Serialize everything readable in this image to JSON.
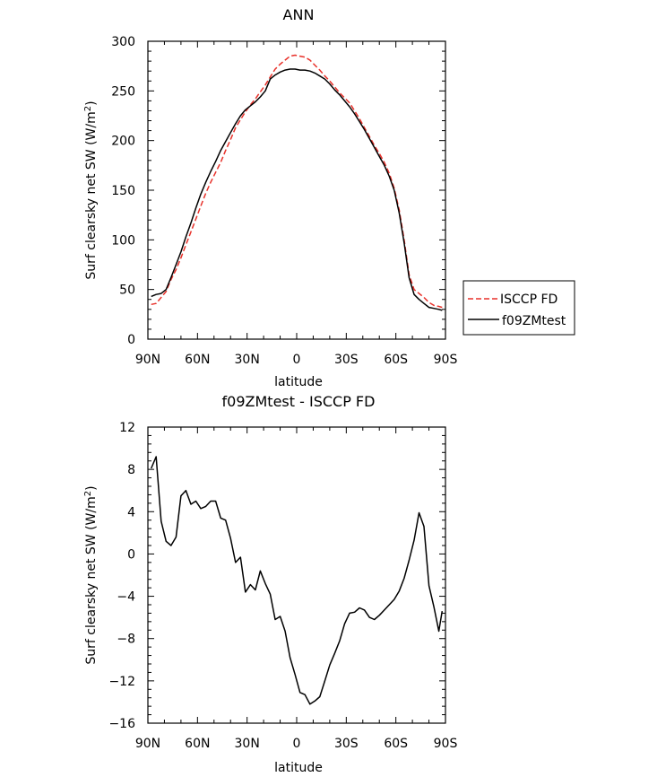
{
  "chart_data": [
    {
      "type": "line",
      "title": "ANN",
      "xlabel": "latitude",
      "ylabel": "Surf clearsky net SW (W/m²)",
      "ylabel_parts": {
        "main": "Surf clearsky net SW (W/m",
        "sup": "2",
        "end": ")"
      },
      "x_tick_labels": [
        "90N",
        "60N",
        "30N",
        "0",
        "30S",
        "60S",
        "90S"
      ],
      "x_ticks": [
        -90,
        -60,
        -30,
        0,
        30,
        60,
        90
      ],
      "xlim": [
        -90,
        90
      ],
      "y_ticks": [
        0,
        50,
        100,
        150,
        200,
        250,
        300
      ],
      "ylim": [
        0,
        300
      ],
      "grid": false,
      "legend_position": "right",
      "x": [
        -88,
        -85,
        -82,
        -79,
        -76,
        -73,
        -70,
        -67,
        -64,
        -61,
        -58,
        -55,
        -52,
        -49,
        -46,
        -43,
        -40,
        -37,
        -34,
        -31,
        -28,
        -25,
        -22,
        -19,
        -16,
        -13,
        -10,
        -7,
        -4,
        -1,
        2,
        5,
        8,
        11,
        14,
        17,
        20,
        23,
        26,
        29,
        32,
        35,
        38,
        41,
        44,
        47,
        50,
        53,
        56,
        59,
        62,
        65,
        68,
        71,
        74,
        77,
        80,
        83,
        86,
        88
      ],
      "series": [
        {
          "name": "ISCCP FD",
          "color": "#e8312a",
          "dash": "dashed",
          "values": [
            35,
            36,
            42,
            48,
            60,
            70,
            82,
            95,
            108,
            121,
            134,
            147,
            158,
            168,
            178,
            190,
            201,
            213,
            221,
            229,
            236,
            242,
            249,
            256,
            264,
            272,
            277,
            281,
            285,
            286,
            285,
            284,
            281,
            276,
            271,
            265,
            260,
            254,
            248,
            243,
            238,
            230,
            222,
            213,
            204,
            195,
            187,
            178,
            167,
            152,
            130,
            100,
            65,
            50,
            46,
            42,
            37,
            34,
            33,
            32
          ],
          "style": {
            "color": "#e8312a",
            "dash": "dashed"
          }
        },
        {
          "name": "f09ZMtest",
          "color": "#000000",
          "dash": "solid",
          "values": [
            43,
            45,
            46,
            50,
            62,
            75,
            88,
            103,
            117,
            132,
            146,
            158,
            169,
            179,
            190,
            199,
            208,
            217,
            225,
            231,
            235,
            239,
            244,
            250,
            262,
            266,
            269,
            271,
            272,
            272,
            271,
            271,
            270,
            268,
            265,
            262,
            257,
            251,
            246,
            240,
            234,
            227,
            219,
            211,
            202,
            193,
            184,
            175,
            164,
            150,
            127,
            97,
            62,
            45,
            40,
            36,
            32,
            31,
            30,
            29
          ],
          "style": {
            "color": "#000000",
            "dash": "solid"
          }
        }
      ]
    },
    {
      "type": "line",
      "title": "f09ZMtest - ISCCP FD",
      "xlabel": "latitude",
      "ylabel": "Surf clearsky net SW (W/m²)",
      "ylabel_parts": {
        "main": "Surf clearsky net SW (W/m",
        "sup": "2",
        "end": ")"
      },
      "x_tick_labels": [
        "90N",
        "60N",
        "30N",
        "0",
        "30S",
        "60S",
        "90S"
      ],
      "x_ticks": [
        -90,
        -60,
        -30,
        0,
        30,
        60,
        90
      ],
      "xlim": [
        -90,
        90
      ],
      "y_ticks": [
        -16,
        -12,
        -8,
        -4,
        0,
        4,
        8,
        12
      ],
      "ylim": [
        -16,
        12
      ],
      "grid": false,
      "x": [
        -88,
        -85,
        -82,
        -79,
        -76,
        -73,
        -70,
        -67,
        -64,
        -61,
        -58,
        -55,
        -52,
        -49,
        -46,
        -43,
        -40,
        -37,
        -34,
        -31,
        -28,
        -25,
        -22,
        -19,
        -16,
        -13,
        -10,
        -7,
        -4,
        -1,
        2,
        5,
        8,
        11,
        14,
        17,
        20,
        23,
        26,
        29,
        32,
        35,
        38,
        41,
        44,
        47,
        50,
        53,
        56,
        59,
        62,
        65,
        68,
        71,
        74,
        77,
        80,
        83,
        86,
        88
      ],
      "series": [
        {
          "color": "#000000",
          "values": [
            8.1,
            9.2,
            3.1,
            1.2,
            0.8,
            1.6,
            5.5,
            6.0,
            4.7,
            5.0,
            4.3,
            4.5,
            5.0,
            5.0,
            3.4,
            3.2,
            1.5,
            -0.8,
            -0.3,
            -3.6,
            -2.9,
            -3.4,
            -1.6,
            -2.8,
            -3.8,
            -6.2,
            -5.9,
            -7.3,
            -9.8,
            -11.4,
            -13.1,
            -13.3,
            -14.2,
            -13.9,
            -13.5,
            -12.0,
            -10.5,
            -9.4,
            -8.2,
            -6.6,
            -5.6,
            -5.5,
            -5.1,
            -5.3,
            -6.0,
            -6.2,
            -5.8,
            -5.3,
            -4.8,
            -4.3,
            -3.5,
            -2.3,
            -0.6,
            1.3,
            3.9,
            2.6,
            -3.0,
            -5.0,
            -7.3,
            -5.4
          ]
        }
      ]
    }
  ]
}
